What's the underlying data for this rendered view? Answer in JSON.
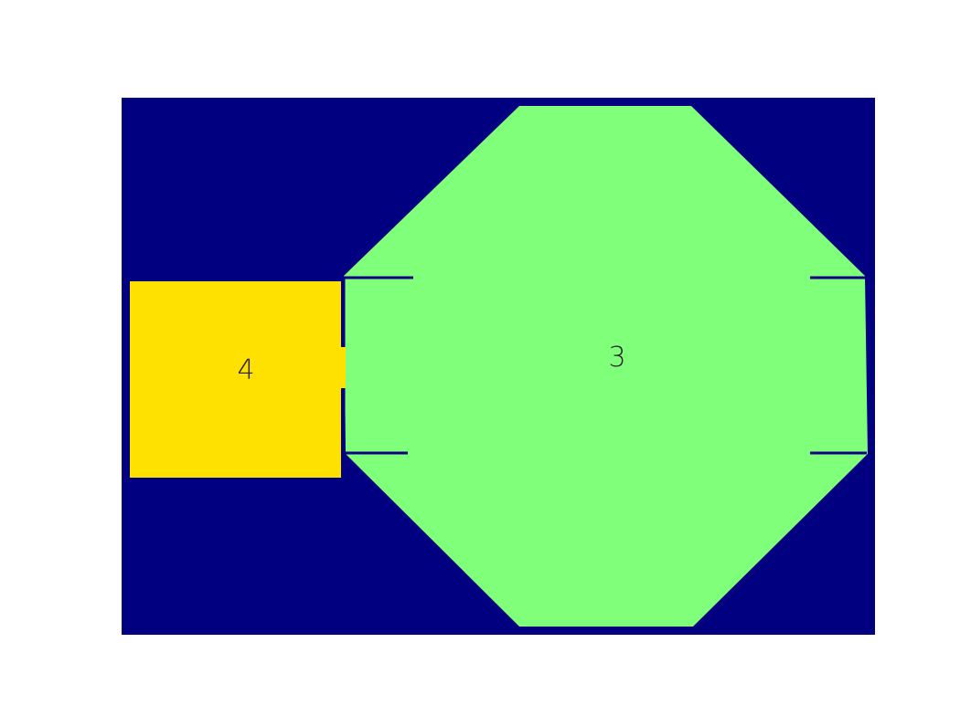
{
  "colors": {
    "page_background": "#ffffff",
    "floor_background": "#000080",
    "octagon_room": "#80ff7a",
    "square_room": "#ffe100",
    "wall_marks": "#000080",
    "label_text": "#222222"
  },
  "rooms": {
    "octagon": {
      "label": "3"
    },
    "square": {
      "label": "4"
    }
  }
}
